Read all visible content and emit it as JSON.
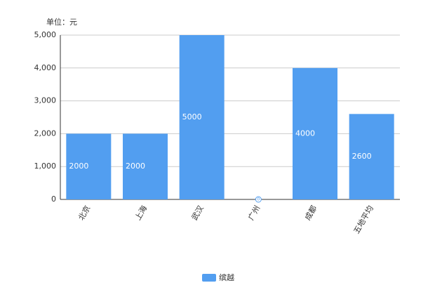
{
  "chart_data": {
    "type": "bar",
    "y_label": "单位：元",
    "categories": [
      "北京",
      "上海",
      "武汉",
      "广州",
      "成都",
      "五地平均"
    ],
    "series": [
      {
        "name": "缤越",
        "color": "#529ef0",
        "values": [
          2000,
          2000,
          5000,
          0,
          4000,
          2600
        ]
      }
    ],
    "ylim": [
      0,
      5000
    ],
    "yticks": [
      0,
      {
        "value": 1000,
        "label": "1,000"
      },
      {
        "value": 2000,
        "label": "2,000"
      },
      {
        "value": 3000,
        "label": "3,000"
      },
      {
        "value": 4000,
        "label": "4,000"
      },
      {
        "value": 5000,
        "label": "5,000"
      }
    ],
    "grid": true,
    "legend": "bottom"
  }
}
